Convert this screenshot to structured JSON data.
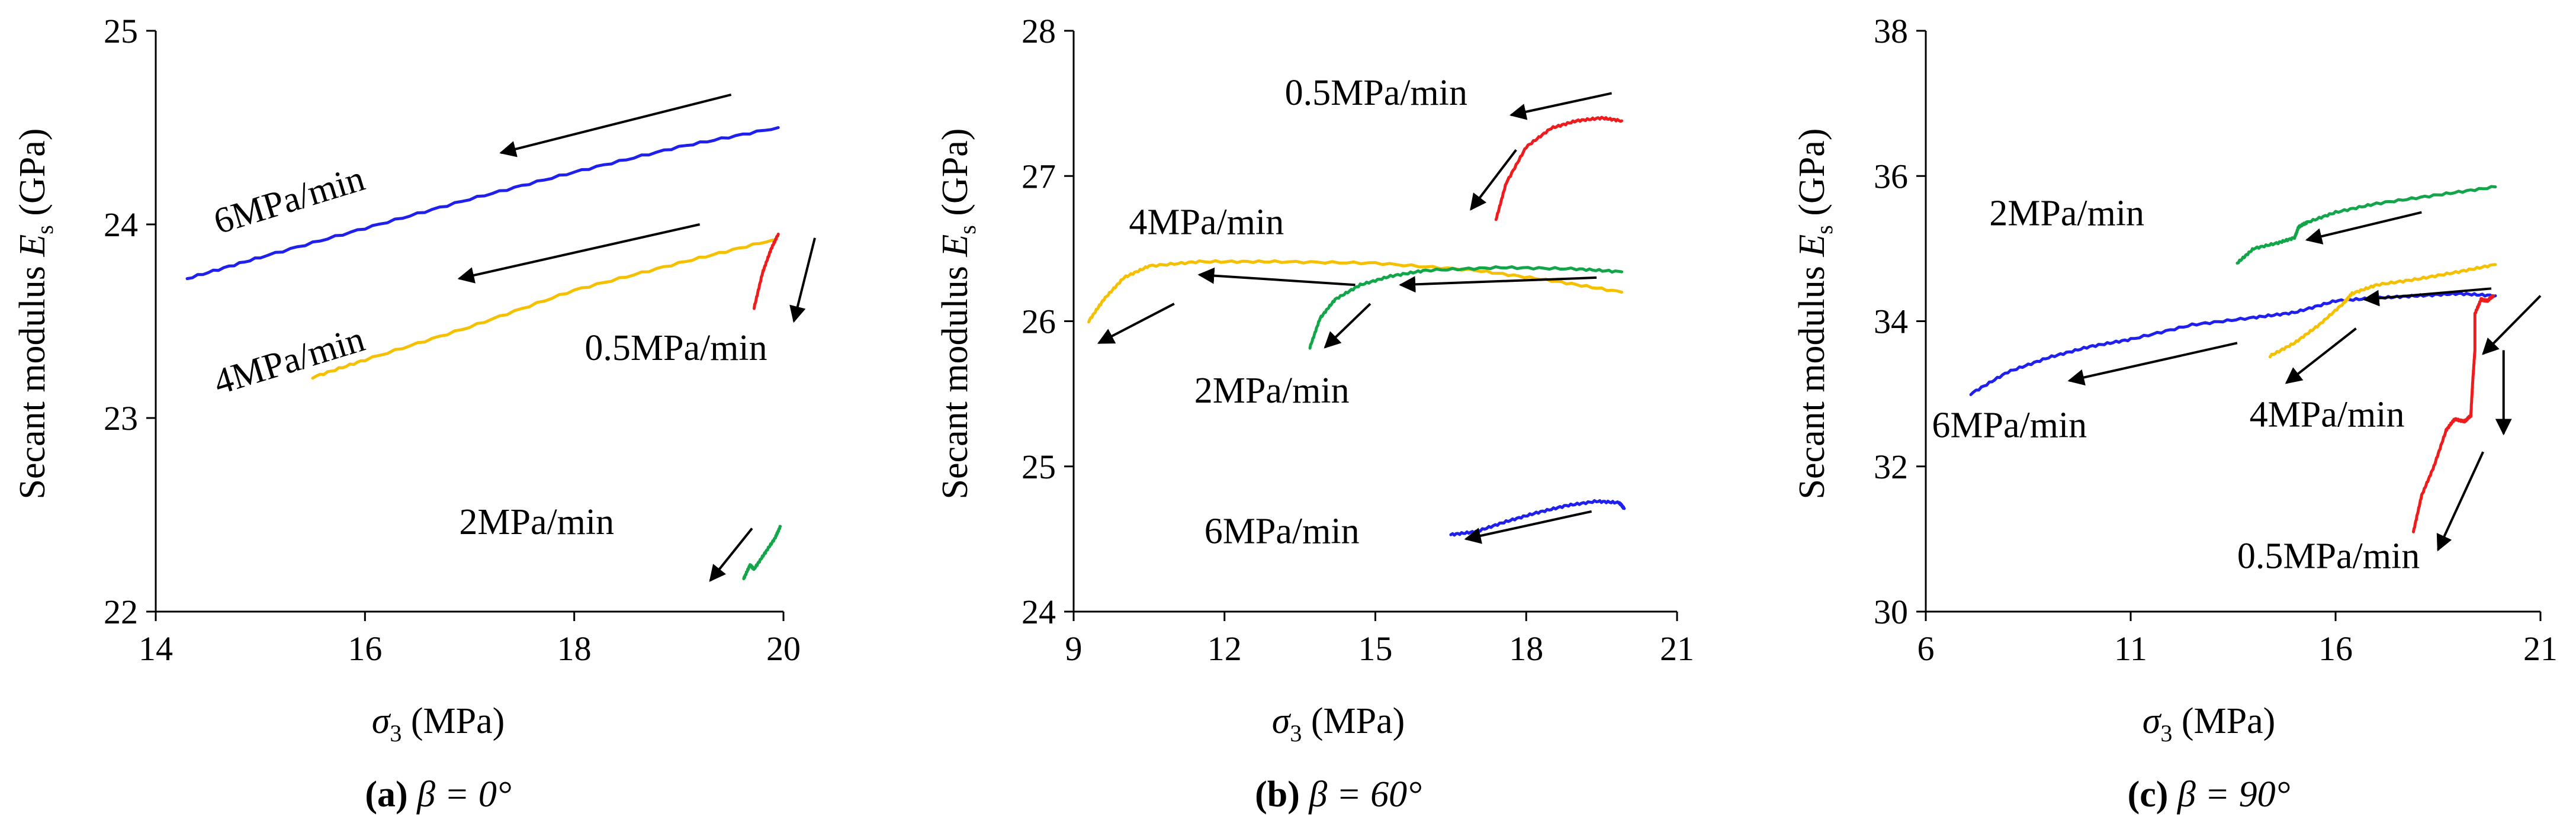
{
  "chart_data": [
    {
      "type": "line",
      "caption": {
        "letter": "(a)",
        "text": "β = 0°"
      },
      "xlabel": {
        "symbol": "σ",
        "sub": "3",
        "unit": " (MPa)"
      },
      "ylabel": {
        "text": "Secant modulus ",
        "symbol": "E",
        "sub": "s",
        "unit": " (GPa)"
      },
      "xlim": [
        14,
        20
      ],
      "ylim": [
        22,
        25
      ],
      "xticks": [
        "14",
        "16",
        "18",
        "20"
      ],
      "yticks": [
        "22",
        "23",
        "24",
        "25"
      ],
      "series": [
        {
          "name": "6MPa/min",
          "color": "#1f1fee",
          "x": [
            14.3,
            15,
            16,
            17,
            18,
            19,
            19.95
          ],
          "y": [
            23.72,
            23.83,
            23.98,
            24.13,
            24.27,
            24.4,
            24.5
          ]
        },
        {
          "name": "4MPa/min",
          "color": "#f5c000",
          "x": [
            15.5,
            16,
            17,
            18,
            19,
            19.9
          ],
          "y": [
            23.21,
            23.3,
            23.47,
            23.66,
            23.8,
            23.92
          ]
        },
        {
          "name": "0.5MPa/min",
          "color": "#ee1c1c",
          "x": [
            19.72,
            19.8,
            19.88,
            19.95
          ],
          "y": [
            23.57,
            23.75,
            23.87,
            23.95
          ]
        },
        {
          "name": "2MPa/min",
          "color": "#13a54a",
          "x": [
            19.62,
            19.68,
            19.72,
            19.82,
            19.92,
            19.97
          ],
          "y": [
            22.17,
            22.24,
            22.22,
            22.3,
            22.38,
            22.44
          ]
        }
      ],
      "labels": [
        {
          "text": "6MPa/min",
          "x": 14.6,
          "y": 23.95,
          "rotate": -17
        },
        {
          "text": "4MPa/min",
          "x": 14.6,
          "y": 23.12,
          "rotate": -17
        },
        {
          "text": "0.5MPa/min",
          "x": 18.1,
          "y": 23.3,
          "rotate": 0
        },
        {
          "text": "2MPa/min",
          "x": 16.9,
          "y": 22.4,
          "rotate": 0
        }
      ],
      "arrows": [
        {
          "from": [
            19.5,
            24.67
          ],
          "to": [
            17.3,
            24.37
          ]
        },
        {
          "from": [
            19.2,
            24.0
          ],
          "to": [
            16.9,
            23.72
          ]
        },
        {
          "from": [
            20.3,
            23.93
          ],
          "to": [
            20.1,
            23.5
          ]
        },
        {
          "from": [
            19.7,
            22.43
          ],
          "to": [
            19.3,
            22.16
          ]
        }
      ]
    },
    {
      "type": "line",
      "caption": {
        "letter": "(b)",
        "text": "β = 60°"
      },
      "xlabel": {
        "symbol": "σ",
        "sub": "3",
        "unit": " (MPa)"
      },
      "ylabel": {
        "text": "Secant modulus ",
        "symbol": "E",
        "sub": "s",
        "unit": " (GPa)"
      },
      "xlim": [
        9,
        21
      ],
      "ylim": [
        24,
        28
      ],
      "xticks": [
        "9",
        "12",
        "15",
        "18",
        "21"
      ],
      "yticks": [
        "24",
        "25",
        "26",
        "27",
        "28"
      ],
      "series": [
        {
          "name": "0.5MPa/min",
          "color": "#ee1c1c",
          "x": [
            17.4,
            17.6,
            18.0,
            18.5,
            19.0,
            19.5,
            19.9
          ],
          "y": [
            26.7,
            26.95,
            27.2,
            27.33,
            27.38,
            27.4,
            27.38
          ]
        },
        {
          "name": "4MPa/min",
          "color": "#f5c000",
          "x": [
            9.3,
            9.6,
            10.0,
            10.5,
            11.5,
            13,
            15,
            17,
            18.5,
            19.9
          ],
          "y": [
            26.0,
            26.15,
            26.3,
            26.38,
            26.41,
            26.41,
            26.4,
            26.35,
            26.28,
            26.2
          ]
        },
        {
          "name": "2MPa/min",
          "color": "#13a54a",
          "x": [
            13.7,
            13.9,
            14.2,
            14.7,
            15.3,
            16.0,
            17.5,
            19.0,
            19.9
          ],
          "y": [
            25.82,
            26.02,
            26.15,
            26.25,
            26.31,
            26.35,
            26.37,
            26.36,
            26.34
          ]
        },
        {
          "name": "6MPa/min",
          "color": "#1f1fee",
          "x": [
            16.5,
            17.0,
            17.6,
            18.2,
            18.8,
            19.4,
            19.85,
            19.95
          ],
          "y": [
            24.53,
            24.55,
            24.62,
            24.68,
            24.73,
            24.76,
            24.75,
            24.71
          ]
        }
      ],
      "labels": [
        {
          "text": "0.5MPa/min",
          "x": 13.2,
          "y": 27.49,
          "rotate": 0
        },
        {
          "text": "4MPa/min",
          "x": 10.1,
          "y": 26.6,
          "rotate": 0
        },
        {
          "text": "2MPa/min",
          "x": 11.4,
          "y": 25.44,
          "rotate": 0
        },
        {
          "text": "6MPa/min",
          "x": 11.6,
          "y": 24.47,
          "rotate": 0
        }
      ],
      "arrows": [
        {
          "from": [
            19.7,
            27.57
          ],
          "to": [
            17.7,
            27.42
          ]
        },
        {
          "from": [
            17.8,
            27.18
          ],
          "to": [
            16.9,
            26.77
          ]
        },
        {
          "from": [
            11.0,
            26.12
          ],
          "to": [
            9.5,
            25.85
          ]
        },
        {
          "from": [
            14.6,
            26.25
          ],
          "to": [
            11.5,
            26.32
          ]
        },
        {
          "from": [
            14.9,
            26.12
          ],
          "to": [
            14.0,
            25.82
          ]
        },
        {
          "from": [
            19.4,
            26.3
          ],
          "to": [
            15.5,
            26.25
          ]
        },
        {
          "from": [
            19.3,
            24.69
          ],
          "to": [
            16.8,
            24.5
          ]
        }
      ]
    },
    {
      "type": "line",
      "caption": {
        "letter": "(c)",
        "text": "β = 90°"
      },
      "xlabel": {
        "symbol": "σ",
        "sub": "3",
        "unit": " (MPa)"
      },
      "ylabel": {
        "text": "Secant modulus ",
        "symbol": "E",
        "sub": "s",
        "unit": " (GPa)"
      },
      "xlim": [
        6,
        21
      ],
      "ylim": [
        30,
        38
      ],
      "xticks": [
        "6",
        "11",
        "16",
        "21"
      ],
      "yticks": [
        "30",
        "32",
        "34",
        "36",
        "38"
      ],
      "series": [
        {
          "name": "2MPa/min",
          "color": "#13a54a",
          "x": [
            13.6,
            14.0,
            14.6,
            15.0,
            15.1,
            15.3,
            16.0,
            17.0,
            18.5,
            19.9
          ],
          "y": [
            34.8,
            35.0,
            35.08,
            35.15,
            35.3,
            35.36,
            35.5,
            35.62,
            35.74,
            35.85
          ]
        },
        {
          "name": "6MPa/min",
          "color": "#1f1fee",
          "x": [
            7.1,
            8.0,
            9.0,
            10.0,
            11.0,
            12.5,
            14.0,
            15.0,
            16.0,
            17.0,
            18.0,
            19.0,
            19.9
          ],
          "y": [
            33.0,
            33.3,
            33.5,
            33.65,
            33.75,
            33.95,
            34.05,
            34.12,
            34.28,
            34.32,
            34.35,
            34.38,
            34.35
          ]
        },
        {
          "name": "4MPa/min",
          "color": "#f5c000",
          "x": [
            14.4,
            15.0,
            15.6,
            16.2,
            16.4,
            17.0,
            18.0,
            19.0,
            19.9
          ],
          "y": [
            33.52,
            33.7,
            33.95,
            34.25,
            34.38,
            34.5,
            34.58,
            34.68,
            34.78
          ]
        },
        {
          "name": "0.5MPa/min",
          "color": "#ee1c1c",
          "x": [
            17.9,
            18.1,
            18.4,
            18.7,
            18.9,
            19.15,
            19.3,
            19.35,
            19.4,
            19.4,
            19.55,
            19.7,
            19.85
          ],
          "y": [
            31.1,
            31.6,
            32.0,
            32.5,
            32.65,
            32.62,
            32.7,
            33.2,
            33.6,
            34.1,
            34.3,
            34.28,
            34.35
          ]
        }
      ],
      "labels": [
        {
          "text": "2MPa/min",
          "x": 7.55,
          "y": 35.32,
          "rotate": 0
        },
        {
          "text": "6MPa/min",
          "x": 6.15,
          "y": 32.4,
          "rotate": 0
        },
        {
          "text": "4MPa/min",
          "x": 13.9,
          "y": 32.55,
          "rotate": 0
        },
        {
          "text": "0.5MPa/min",
          "x": 13.6,
          "y": 30.6,
          "rotate": 0
        }
      ],
      "arrows": [
        {
          "from": [
            18.1,
            35.5
          ],
          "to": [
            15.3,
            35.12
          ]
        },
        {
          "from": [
            13.6,
            33.7
          ],
          "to": [
            9.5,
            33.18
          ]
        },
        {
          "from": [
            16.5,
            33.9
          ],
          "to": [
            14.8,
            33.15
          ]
        },
        {
          "from": [
            19.8,
            34.45
          ],
          "to": [
            16.7,
            34.3
          ]
        },
        {
          "from": [
            21.0,
            34.35
          ],
          "to": [
            19.6,
            33.55
          ]
        },
        {
          "from": [
            20.1,
            33.6
          ],
          "to": [
            20.1,
            32.45
          ]
        },
        {
          "from": [
            19.6,
            32.2
          ],
          "to": [
            18.5,
            30.85
          ]
        }
      ]
    }
  ]
}
